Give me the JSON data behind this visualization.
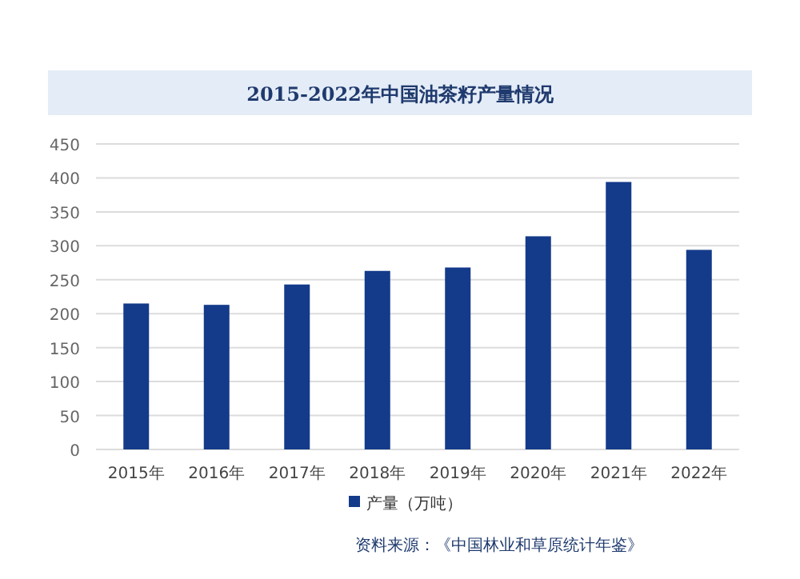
{
  "chart_data": {
    "type": "bar",
    "title": "2015-2022年中国油茶籽产量情况",
    "categories": [
      "2015年",
      "2016年",
      "2017年",
      "2018年",
      "2019年",
      "2020年",
      "2021年",
      "2022年"
    ],
    "series": [
      {
        "name": "产量（万吨）",
        "color": "#143a8a",
        "values": [
          215,
          213,
          243,
          263,
          268,
          314,
          394,
          294
        ]
      }
    ],
    "ylim": [
      0,
      450
    ],
    "yticks": [
      0,
      50,
      100,
      150,
      200,
      250,
      300,
      350,
      400,
      450
    ],
    "grid": "y",
    "legend": "bottom",
    "annotations": [
      "资料来源：《中国林业和草原统计年鉴》"
    ]
  }
}
